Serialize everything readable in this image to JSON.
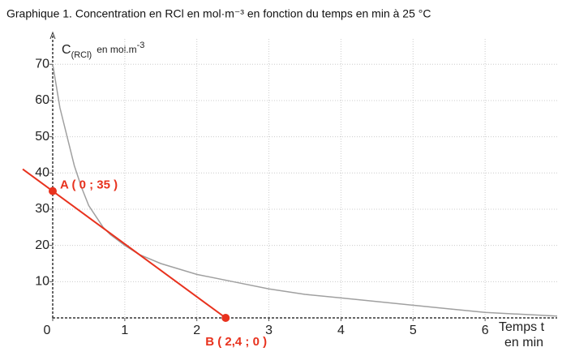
{
  "chart_data": {
    "type": "line",
    "title": "Graphique 1. Concentration en RCl en mol·m⁻³ en fonction du temps en min à 25 °C",
    "y_label": "C",
    "y_label_sub": "(RCl)",
    "y_label_unit": "en mol.m",
    "y_label_exp": "-3",
    "x_label": "Temps t",
    "x_label_unit": "en min",
    "x": [
      0,
      0.1,
      0.2,
      0.3,
      0.4,
      0.5,
      0.6,
      0.7,
      0.8,
      1,
      1.2,
      1.5,
      2,
      2.5,
      3,
      3.5,
      4,
      4.5,
      5,
      5.5,
      6,
      6.5,
      7
    ],
    "series": [
      {
        "color": "#a0a0a0",
        "values": [
          70,
          58,
          50,
          42,
          36,
          31,
          28,
          25,
          23,
          20,
          17.5,
          15,
          12,
          10,
          8,
          6.5,
          5.5,
          4.5,
          3.5,
          2.5,
          1.5,
          1,
          0.5
        ]
      }
    ],
    "tangent": {
      "color": "#e8321e",
      "x": [
        0,
        2.4
      ],
      "values": [
        35,
        0
      ],
      "point_labels": [
        "A ( 0 ; 35 )",
        "B ( 2,4 ; 0 )"
      ]
    },
    "xlim": [
      0,
      7
    ],
    "ylim": [
      0,
      77
    ],
    "xticks": [
      0,
      1,
      2,
      3,
      4,
      5,
      6
    ],
    "yticks": [
      10,
      20,
      30,
      40,
      50,
      60,
      70
    ],
    "grid": true
  }
}
